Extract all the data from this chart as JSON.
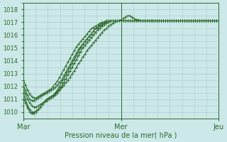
{
  "bg_color": "#cce8e8",
  "grid_color": "#aacccc",
  "line_color": "#2d6a2d",
  "ylabel": "Pression niveau de la mer( hPa )",
  "ylim": [
    1009.5,
    1018.2
  ],
  "yticks": [
    1010,
    1011,
    1012,
    1013,
    1014,
    1015,
    1016,
    1017,
    1018
  ],
  "xtick_labels": [
    "Mar",
    "Mer",
    "Jeu"
  ],
  "xtick_positions": [
    0,
    48,
    96
  ],
  "total_steps": 96,
  "lines": [
    [
      1011.8,
      1011.4,
      1011.0,
      1010.7,
      1010.5,
      1010.4,
      1010.4,
      1010.5,
      1010.6,
      1010.7,
      1010.8,
      1010.9,
      1011.0,
      1011.1,
      1011.2,
      1011.3,
      1011.5,
      1011.7,
      1011.9,
      1012.1,
      1012.3,
      1012.5,
      1012.7,
      1013.0,
      1013.2,
      1013.5,
      1013.8,
      1014.0,
      1014.3,
      1014.5,
      1014.8,
      1015.0,
      1015.2,
      1015.4,
      1015.6,
      1015.8,
      1016.0,
      1016.2,
      1016.4,
      1016.5,
      1016.7,
      1016.8,
      1016.9,
      1017.0,
      1017.1,
      1017.1,
      1017.2,
      1017.3,
      1017.4,
      1017.5,
      1017.5,
      1017.4,
      1017.3,
      1017.2,
      1017.2,
      1017.1,
      1017.1,
      1017.1,
      1017.1,
      1017.1,
      1017.1,
      1017.1,
      1017.1,
      1017.1,
      1017.1,
      1017.1,
      1017.1,
      1017.1,
      1017.1,
      1017.1,
      1017.1,
      1017.1,
      1017.1,
      1017.1,
      1017.1,
      1017.1,
      1017.1,
      1017.1,
      1017.1,
      1017.1,
      1017.1,
      1017.1,
      1017.1,
      1017.1,
      1017.1,
      1017.1,
      1017.1,
      1017.1,
      1017.1,
      1017.1,
      1017.1,
      1017.1,
      1017.1
    ],
    [
      1011.5,
      1011.0,
      1010.5,
      1010.2,
      1010.0,
      1010.0,
      1010.1,
      1010.2,
      1010.4,
      1010.6,
      1010.8,
      1011.0,
      1011.1,
      1011.2,
      1011.3,
      1011.4,
      1011.6,
      1011.8,
      1012.0,
      1012.3,
      1012.6,
      1012.9,
      1013.2,
      1013.5,
      1013.8,
      1014.1,
      1014.4,
      1014.7,
      1015.0,
      1015.2,
      1015.4,
      1015.6,
      1015.8,
      1016.0,
      1016.2,
      1016.4,
      1016.5,
      1016.7,
      1016.8,
      1016.9,
      1017.0,
      1017.1,
      1017.1,
      1017.1,
      1017.1,
      1017.1,
      1017.1,
      1017.1,
      1017.1,
      1017.1,
      1017.1,
      1017.1,
      1017.1,
      1017.1,
      1017.1,
      1017.1,
      1017.1,
      1017.1,
      1017.1,
      1017.1,
      1017.1,
      1017.1,
      1017.1,
      1017.1,
      1017.1,
      1017.1,
      1017.1,
      1017.1,
      1017.1,
      1017.1,
      1017.1,
      1017.1,
      1017.1,
      1017.1,
      1017.1,
      1017.1,
      1017.1,
      1017.1,
      1017.1,
      1017.1,
      1017.1,
      1017.1,
      1017.1,
      1017.1,
      1017.1,
      1017.1,
      1017.1,
      1017.1,
      1017.1,
      1017.1,
      1017.1,
      1017.1,
      1017.1
    ],
    [
      1011.2,
      1010.7,
      1010.3,
      1010.0,
      1009.9,
      1009.9,
      1010.0,
      1010.2,
      1010.4,
      1010.6,
      1010.8,
      1011.0,
      1011.1,
      1011.2,
      1011.3,
      1011.5,
      1011.7,
      1012.0,
      1012.3,
      1012.6,
      1012.9,
      1013.2,
      1013.5,
      1013.8,
      1014.1,
      1014.4,
      1014.7,
      1015.0,
      1015.3,
      1015.5,
      1015.7,
      1015.9,
      1016.1,
      1016.3,
      1016.5,
      1016.6,
      1016.8,
      1016.9,
      1017.0,
      1017.1,
      1017.1,
      1017.1,
      1017.1,
      1017.1,
      1017.1,
      1017.1,
      1017.1,
      1017.1,
      1017.1,
      1017.1,
      1017.1,
      1017.1,
      1017.1,
      1017.1,
      1017.1,
      1017.1,
      1017.1,
      1017.1,
      1017.1,
      1017.1,
      1017.1,
      1017.1,
      1017.1,
      1017.1,
      1017.1,
      1017.1,
      1017.1,
      1017.1,
      1017.1,
      1017.1,
      1017.1,
      1017.1,
      1017.1,
      1017.1,
      1017.1,
      1017.1,
      1017.1,
      1017.1,
      1017.1,
      1017.1,
      1017.1,
      1017.1,
      1017.1,
      1017.1,
      1017.1,
      1017.1,
      1017.1,
      1017.1,
      1017.1,
      1017.1,
      1017.1,
      1017.1,
      1017.1
    ],
    [
      1012.1,
      1011.7,
      1011.3,
      1011.0,
      1010.9,
      1010.9,
      1011.0,
      1011.1,
      1011.2,
      1011.3,
      1011.4,
      1011.5,
      1011.6,
      1011.7,
      1011.8,
      1011.9,
      1012.1,
      1012.3,
      1012.5,
      1012.8,
      1013.1,
      1013.4,
      1013.7,
      1014.0,
      1014.3,
      1014.6,
      1014.9,
      1015.1,
      1015.3,
      1015.5,
      1015.7,
      1015.9,
      1016.1,
      1016.3,
      1016.5,
      1016.6,
      1016.7,
      1016.8,
      1016.9,
      1017.0,
      1017.0,
      1017.1,
      1017.1,
      1017.1,
      1017.1,
      1017.1,
      1017.1,
      1017.1,
      1017.1,
      1017.1,
      1017.1,
      1017.1,
      1017.1,
      1017.1,
      1017.1,
      1017.1,
      1017.1,
      1017.1,
      1017.1,
      1017.1,
      1017.1,
      1017.1,
      1017.1,
      1017.1,
      1017.1,
      1017.1,
      1017.1,
      1017.1,
      1017.1,
      1017.1,
      1017.1,
      1017.1,
      1017.1,
      1017.1,
      1017.1,
      1017.1,
      1017.1,
      1017.1,
      1017.1,
      1017.1,
      1017.1,
      1017.1,
      1017.1,
      1017.1,
      1017.1,
      1017.1,
      1017.1,
      1017.1,
      1017.1,
      1017.1,
      1017.1,
      1017.1,
      1017.1
    ],
    [
      1012.5,
      1012.1,
      1011.7,
      1011.4,
      1011.2,
      1011.1,
      1011.1,
      1011.2,
      1011.3,
      1011.4,
      1011.5,
      1011.6,
      1011.7,
      1011.8,
      1012.0,
      1012.2,
      1012.4,
      1012.7,
      1013.0,
      1013.3,
      1013.6,
      1013.9,
      1014.2,
      1014.5,
      1014.8,
      1015.1,
      1015.3,
      1015.5,
      1015.7,
      1015.9,
      1016.1,
      1016.3,
      1016.5,
      1016.6,
      1016.7,
      1016.8,
      1016.9,
      1017.0,
      1017.0,
      1017.1,
      1017.1,
      1017.1,
      1017.1,
      1017.1,
      1017.1,
      1017.1,
      1017.1,
      1017.1,
      1017.1,
      1017.1,
      1017.1,
      1017.1,
      1017.1,
      1017.1,
      1017.1,
      1017.1,
      1017.1,
      1017.1,
      1017.1,
      1017.1,
      1017.1,
      1017.1,
      1017.1,
      1017.1,
      1017.1,
      1017.1,
      1017.1,
      1017.1,
      1017.1,
      1017.1,
      1017.1,
      1017.1,
      1017.1,
      1017.1,
      1017.1,
      1017.1,
      1017.1,
      1017.1,
      1017.1,
      1017.1,
      1017.1,
      1017.1,
      1017.1,
      1017.1,
      1017.1,
      1017.1,
      1017.1,
      1017.1,
      1017.1,
      1017.1,
      1017.1,
      1017.1,
      1017.1
    ]
  ],
  "marker": "+",
  "marker_size": 2.5,
  "line_width": 0.8
}
